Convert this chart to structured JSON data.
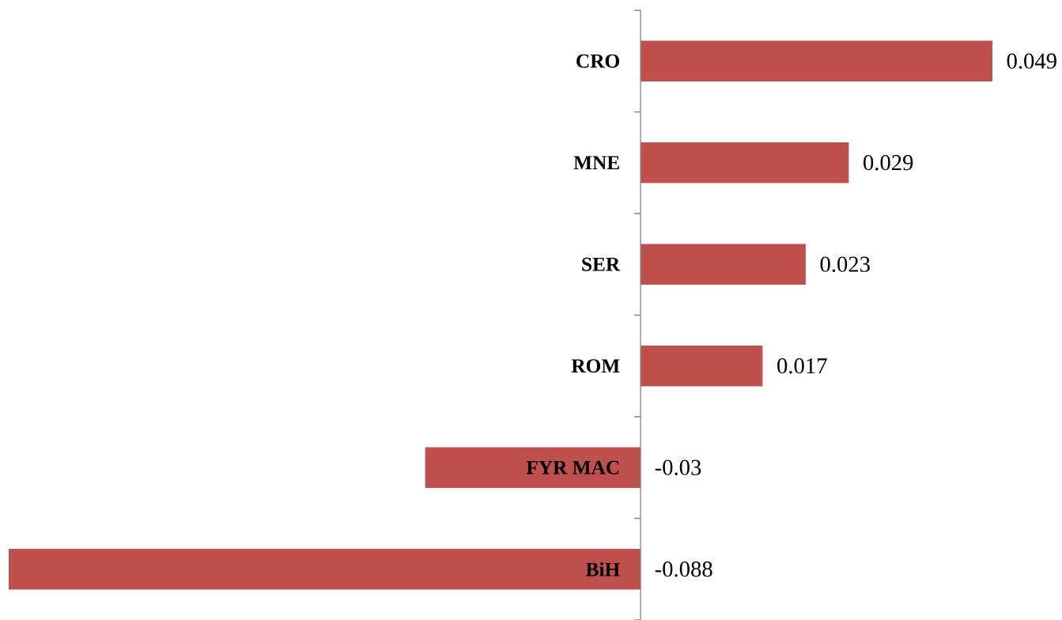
{
  "chart_data": {
    "type": "bar",
    "orientation": "horizontal",
    "categories": [
      "CRO",
      "MNE",
      "SER",
      "ROM",
      "FYR MAC",
      "BiH"
    ],
    "values": [
      0.049,
      0.029,
      0.023,
      0.017,
      -0.03,
      -0.088
    ],
    "color": "#c0504d",
    "data_labels": true
  }
}
